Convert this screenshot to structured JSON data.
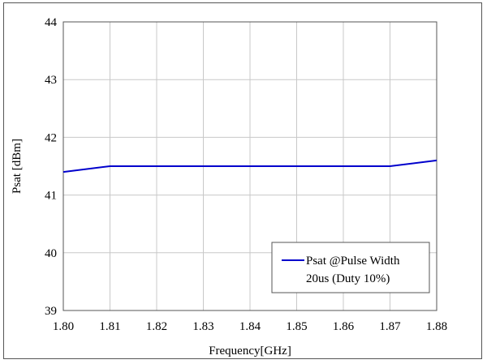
{
  "chart_data": {
    "type": "line",
    "title": "",
    "xlabel": "Frequency[GHz]",
    "ylabel": "Psat [dBm]",
    "xlim": [
      1.8,
      1.88
    ],
    "ylim": [
      39,
      44
    ],
    "x_ticks": [
      "1.80",
      "1.81",
      "1.82",
      "1.83",
      "1.84",
      "1.85",
      "1.86",
      "1.87",
      "1.88"
    ],
    "y_ticks": [
      "39",
      "40",
      "41",
      "42",
      "43",
      "44"
    ],
    "grid": true,
    "legend_position": "bottom-right",
    "series": [
      {
        "name_line1": "Psat @Pulse Width",
        "name_line2": "20us (Duty 10%)",
        "color": "#0000cc",
        "x": [
          1.8,
          1.81,
          1.82,
          1.83,
          1.84,
          1.85,
          1.86,
          1.87,
          1.88
        ],
        "y": [
          41.4,
          41.5,
          41.5,
          41.5,
          41.5,
          41.5,
          41.5,
          41.5,
          41.6
        ]
      }
    ]
  }
}
